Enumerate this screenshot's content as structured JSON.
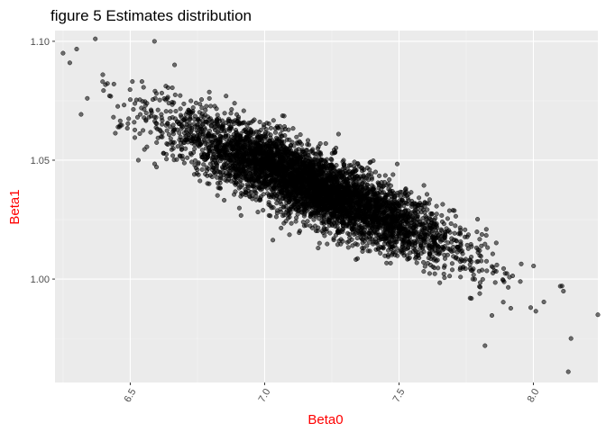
{
  "chart_data": {
    "type": "scatter",
    "title": "figure 5 Estimates distribution",
    "xlabel": "Beta0",
    "ylabel": "Beta1",
    "xlim": [
      6.22,
      8.24
    ],
    "ylim": [
      0.9565,
      1.1045
    ],
    "x_ticks": [
      6.5,
      7.0,
      7.5,
      8.0
    ],
    "x_tick_labels": [
      "6.5",
      "7.0",
      "7.5",
      "8.0"
    ],
    "y_ticks": [
      1.0,
      1.05,
      1.1
    ],
    "y_tick_labels": [
      "1.00",
      "1.05",
      "1.10"
    ],
    "grid": true,
    "legend": "none",
    "x_tick_label_rotation_deg": -60,
    "point_count_estimate": 5000,
    "distribution": {
      "mean_x": 7.18,
      "mean_y": 1.039,
      "sd_x": 0.26,
      "sd_y": 0.0145,
      "correlation": -0.86
    },
    "highlighted_points": [
      {
        "x": 6.25,
        "y": 1.095
      },
      {
        "x": 6.37,
        "y": 1.101
      },
      {
        "x": 6.59,
        "y": 1.1
      },
      {
        "x": 6.34,
        "y": 1.076
      },
      {
        "x": 6.46,
        "y": 1.064
      },
      {
        "x": 6.53,
        "y": 1.05
      },
      {
        "x": 8.24,
        "y": 0.985
      },
      {
        "x": 8.14,
        "y": 0.975
      },
      {
        "x": 8.13,
        "y": 0.961
      },
      {
        "x": 7.82,
        "y": 0.972
      },
      {
        "x": 8.1,
        "y": 0.997
      },
      {
        "x": 7.99,
        "y": 0.988
      }
    ],
    "colors": {
      "panel_background": "#ebebeb",
      "grid_major": "#ffffff",
      "grid_minor": "#f5f5f5",
      "point_fill": "#000000",
      "point_opacity": 0.55,
      "axis_title_color": "#ff0000",
      "tick_label_color": "#4d4d4d",
      "title_color": "#000000"
    }
  }
}
